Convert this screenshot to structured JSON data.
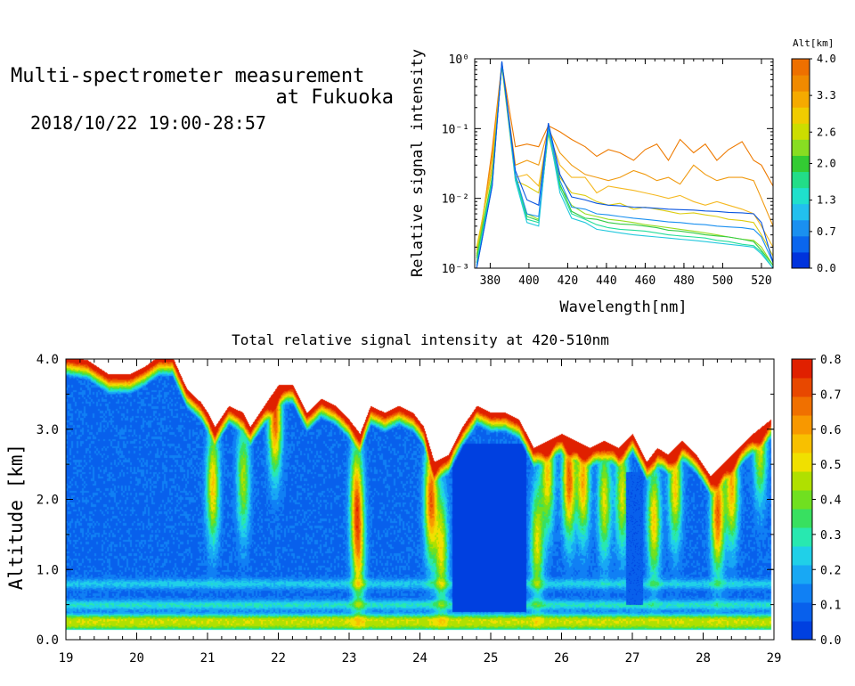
{
  "header": {
    "title_line1": "Multi-spectrometer measurement",
    "title_line2": "at Fukuoka",
    "datetime": "2018/10/22 19:00-28:57"
  },
  "chart_data": [
    {
      "type": "line",
      "xlabel": "Wavelength[nm]",
      "ylabel": "Relative signal intensity",
      "xlim": [
        372,
        526
      ],
      "ylim": [
        0.001,
        1
      ],
      "yscale": "log",
      "x_ticks": [
        "380",
        "400",
        "420",
        "440",
        "460",
        "480",
        "500",
        "520"
      ],
      "y_ticks": [
        "10⁻³",
        "10⁻²",
        "10⁻¹",
        "10⁰"
      ],
      "colorbar": {
        "title": "Alt[km]",
        "ticks": [
          "4.0",
          "3.3",
          "2.6",
          "2.0",
          "1.3",
          "0.7",
          "0.0"
        ],
        "colors": [
          "#0033dd",
          "#0a66ee",
          "#1a90f0",
          "#22c0ee",
          "#1fe0cc",
          "#22dd88",
          "#33cc33",
          "#88dd22",
          "#ccdd00",
          "#f0cc00",
          "#f5aa00",
          "#f08a00",
          "#ee7000"
        ]
      },
      "x": [
        373,
        381,
        386,
        393,
        399,
        405,
        410,
        416,
        422,
        429,
        435,
        441,
        447,
        454,
        460,
        466,
        472,
        478,
        485,
        491,
        497,
        503,
        510,
        516,
        520,
        526
      ],
      "series": [
        {
          "color": "#ee7a00",
          "values": [
            0.0012,
            0.05,
            0.85,
            0.055,
            0.06,
            0.055,
            0.11,
            0.09,
            0.07,
            0.055,
            0.04,
            0.05,
            0.045,
            0.035,
            0.05,
            0.06,
            0.035,
            0.07,
            0.045,
            0.06,
            0.035,
            0.05,
            0.065,
            0.035,
            0.03,
            0.015
          ]
        },
        {
          "color": "#f09a10",
          "values": [
            0.0015,
            0.04,
            0.82,
            0.03,
            0.035,
            0.03,
            0.1,
            0.045,
            0.03,
            0.022,
            0.02,
            0.018,
            0.02,
            0.025,
            0.022,
            0.018,
            0.02,
            0.016,
            0.03,
            0.022,
            0.018,
            0.02,
            0.02,
            0.018,
            0.01,
            0.004
          ]
        },
        {
          "color": "#f5b820",
          "values": [
            0.0018,
            0.03,
            0.8,
            0.02,
            0.022,
            0.015,
            0.09,
            0.03,
            0.02,
            0.02,
            0.012,
            0.015,
            0.014,
            0.013,
            0.012,
            0.011,
            0.01,
            0.011,
            0.009,
            0.008,
            0.009,
            0.008,
            0.007,
            0.006,
            0.004,
            0.002
          ]
        },
        {
          "color": "#ddcc10",
          "values": [
            0.002,
            0.025,
            0.78,
            0.018,
            0.015,
            0.012,
            0.085,
            0.02,
            0.012,
            0.011,
            0.009,
            0.008,
            0.0085,
            0.007,
            0.0075,
            0.007,
            0.0065,
            0.006,
            0.0062,
            0.0058,
            0.0055,
            0.005,
            0.0048,
            0.0045,
            0.003,
            0.0015
          ]
        },
        {
          "color": "#99dd22",
          "values": [
            0.0016,
            0.02,
            0.8,
            0.02,
            0.006,
            0.005,
            0.085,
            0.015,
            0.008,
            0.006,
            0.0055,
            0.005,
            0.0048,
            0.0045,
            0.0042,
            0.004,
            0.0038,
            0.0036,
            0.0034,
            0.0032,
            0.003,
            0.0028,
            0.0026,
            0.0025,
            0.002,
            0.0011
          ]
        },
        {
          "color": "#33cc44",
          "values": [
            0.0014,
            0.02,
            0.82,
            0.022,
            0.0055,
            0.0048,
            0.09,
            0.016,
            0.0065,
            0.0052,
            0.005,
            0.0045,
            0.0043,
            0.0042,
            0.004,
            0.0038,
            0.0035,
            0.0034,
            0.0032,
            0.003,
            0.0029,
            0.0028,
            0.0026,
            0.0024,
            0.0018,
            0.0011
          ]
        },
        {
          "color": "#22dd99",
          "values": [
            0.0012,
            0.018,
            0.85,
            0.02,
            0.005,
            0.0045,
            0.095,
            0.014,
            0.006,
            0.005,
            0.0042,
            0.0038,
            0.0036,
            0.0035,
            0.0034,
            0.0032,
            0.003,
            0.0029,
            0.0028,
            0.0027,
            0.0025,
            0.0024,
            0.0022,
            0.0021,
            0.0017,
            0.001
          ]
        },
        {
          "color": "#22c8dd",
          "values": [
            0.0011,
            0.016,
            0.88,
            0.018,
            0.0045,
            0.004,
            0.1,
            0.012,
            0.0052,
            0.0045,
            0.0036,
            0.0034,
            0.0032,
            0.003,
            0.0029,
            0.0028,
            0.0027,
            0.0026,
            0.0025,
            0.0024,
            0.0023,
            0.0022,
            0.0021,
            0.002,
            0.0016,
            0.001
          ]
        },
        {
          "color": "#1a90f0",
          "values": [
            0.001,
            0.015,
            0.9,
            0.022,
            0.006,
            0.0055,
            0.11,
            0.018,
            0.0075,
            0.007,
            0.006,
            0.0058,
            0.0055,
            0.0052,
            0.005,
            0.0048,
            0.0046,
            0.0045,
            0.0043,
            0.0042,
            0.004,
            0.0039,
            0.0038,
            0.0036,
            0.0028,
            0.0012
          ]
        },
        {
          "color": "#0a55e0",
          "values": [
            0.001,
            0.015,
            0.92,
            0.025,
            0.0095,
            0.008,
            0.12,
            0.022,
            0.0105,
            0.0095,
            0.0085,
            0.008,
            0.0078,
            0.0075,
            0.0074,
            0.0072,
            0.007,
            0.0069,
            0.0068,
            0.0066,
            0.0065,
            0.0063,
            0.0062,
            0.006,
            0.0045,
            0.0012
          ]
        }
      ]
    },
    {
      "type": "heatmap",
      "title": "Total relative signal intensity at 420-510nm",
      "ylabel": "Altitude [km]",
      "xlim": [
        19,
        29
      ],
      "ylim": [
        0,
        4
      ],
      "x_ticks": [
        "19",
        "20",
        "21",
        "22",
        "23",
        "24",
        "25",
        "26",
        "27",
        "28",
        "29"
      ],
      "y_ticks": [
        "0.0",
        "1.0",
        "2.0",
        "3.0",
        "4.0"
      ],
      "colorbar": {
        "ticks": [
          "0.0",
          "0.1",
          "0.2",
          "0.3",
          "0.4",
          "0.5",
          "0.6",
          "0.7",
          "0.8"
        ],
        "range": [
          0,
          0.8
        ],
        "colors": [
          "#0040e0",
          "#0860ec",
          "#1080f4",
          "#18a8f4",
          "#20d0e8",
          "#28e8b0",
          "#38e060",
          "#70e020",
          "#b0e000",
          "#f0e000",
          "#f8c000",
          "#f89800",
          "#f07000",
          "#e84800",
          "#e02000"
        ]
      },
      "data_time_range": [
        19.0,
        28.95
      ],
      "data_alt_range": [
        0.15,
        4.0
      ],
      "cloud_base_km": [
        [
          19.0,
          4.0
        ],
        [
          19.3,
          3.95
        ],
        [
          19.6,
          3.75
        ],
        [
          19.9,
          3.75
        ],
        [
          20.1,
          3.85
        ],
        [
          20.3,
          4.0
        ],
        [
          20.5,
          4.0
        ],
        [
          20.7,
          3.55
        ],
        [
          20.9,
          3.35
        ],
        [
          21.0,
          3.2
        ],
        [
          21.1,
          3.0
        ],
        [
          21.3,
          3.3
        ],
        [
          21.5,
          3.2
        ],
        [
          21.6,
          3.0
        ],
        [
          21.8,
          3.3
        ],
        [
          22.0,
          3.6
        ],
        [
          22.2,
          3.6
        ],
        [
          22.4,
          3.2
        ],
        [
          22.6,
          3.4
        ],
        [
          22.8,
          3.3
        ],
        [
          23.0,
          3.1
        ],
        [
          23.15,
          2.9
        ],
        [
          23.3,
          3.3
        ],
        [
          23.5,
          3.2
        ],
        [
          23.7,
          3.3
        ],
        [
          23.9,
          3.2
        ],
        [
          24.05,
          3.0
        ],
        [
          24.2,
          2.5
        ],
        [
          24.4,
          2.6
        ],
        [
          24.6,
          3.0
        ],
        [
          24.8,
          3.3
        ],
        [
          25.0,
          3.2
        ],
        [
          25.2,
          3.2
        ],
        [
          25.4,
          3.1
        ],
        [
          25.6,
          2.7
        ],
        [
          25.8,
          2.8
        ],
        [
          26.0,
          2.9
        ],
        [
          26.2,
          2.8
        ],
        [
          26.4,
          2.7
        ],
        [
          26.6,
          2.8
        ],
        [
          26.8,
          2.7
        ],
        [
          27.0,
          2.9
        ],
        [
          27.2,
          2.5
        ],
        [
          27.35,
          2.7
        ],
        [
          27.5,
          2.6
        ],
        [
          27.7,
          2.8
        ],
        [
          27.9,
          2.6
        ],
        [
          28.1,
          2.3
        ],
        [
          28.3,
          2.5
        ],
        [
          28.5,
          2.7
        ],
        [
          28.7,
          2.9
        ],
        [
          28.95,
          3.1
        ]
      ],
      "hotspots": [
        {
          "t": 21.07,
          "alt": 2.2,
          "v": 0.45
        },
        {
          "t": 21.5,
          "alt": 2.3,
          "v": 0.35
        },
        {
          "t": 21.95,
          "alt": 3.2,
          "v": 0.6
        },
        {
          "t": 23.1,
          "alt": 2.0,
          "v": 0.5
        },
        {
          "t": 23.13,
          "alt": 1.2,
          "v": 0.35
        },
        {
          "t": 24.15,
          "alt": 2.0,
          "v": 0.6
        },
        {
          "t": 24.3,
          "alt": 1.3,
          "v": 0.4
        },
        {
          "t": 25.65,
          "alt": 1.4,
          "v": 0.4
        },
        {
          "t": 25.8,
          "alt": 2.4,
          "v": 0.45
        },
        {
          "t": 26.1,
          "alt": 2.3,
          "v": 0.6
        },
        {
          "t": 26.3,
          "alt": 2.3,
          "v": 0.5
        },
        {
          "t": 26.6,
          "alt": 2.0,
          "v": 0.4
        },
        {
          "t": 26.85,
          "alt": 2.1,
          "v": 0.4
        },
        {
          "t": 27.3,
          "alt": 1.7,
          "v": 0.45
        },
        {
          "t": 27.6,
          "alt": 2.2,
          "v": 0.45
        },
        {
          "t": 28.2,
          "alt": 1.8,
          "v": 0.6
        },
        {
          "t": 28.4,
          "alt": 2.2,
          "v": 0.5
        },
        {
          "t": 28.8,
          "alt": 2.8,
          "v": 0.4
        }
      ],
      "surface_layer": [
        {
          "alt": 0.2,
          "v": 0.3
        },
        {
          "alt": 0.3,
          "v": 0.32
        },
        {
          "alt": 0.5,
          "v": 0.18
        },
        {
          "alt": 0.8,
          "v": 0.14
        }
      ],
      "dark_zones": [
        {
          "t0": 24.45,
          "t1": 25.5,
          "alt0": 0.4,
          "alt1": 2.8,
          "v": 0.02
        },
        {
          "t0": 26.9,
          "t1": 27.15,
          "alt0": 0.5,
          "alt1": 2.4,
          "v": 0.05
        }
      ]
    }
  ]
}
